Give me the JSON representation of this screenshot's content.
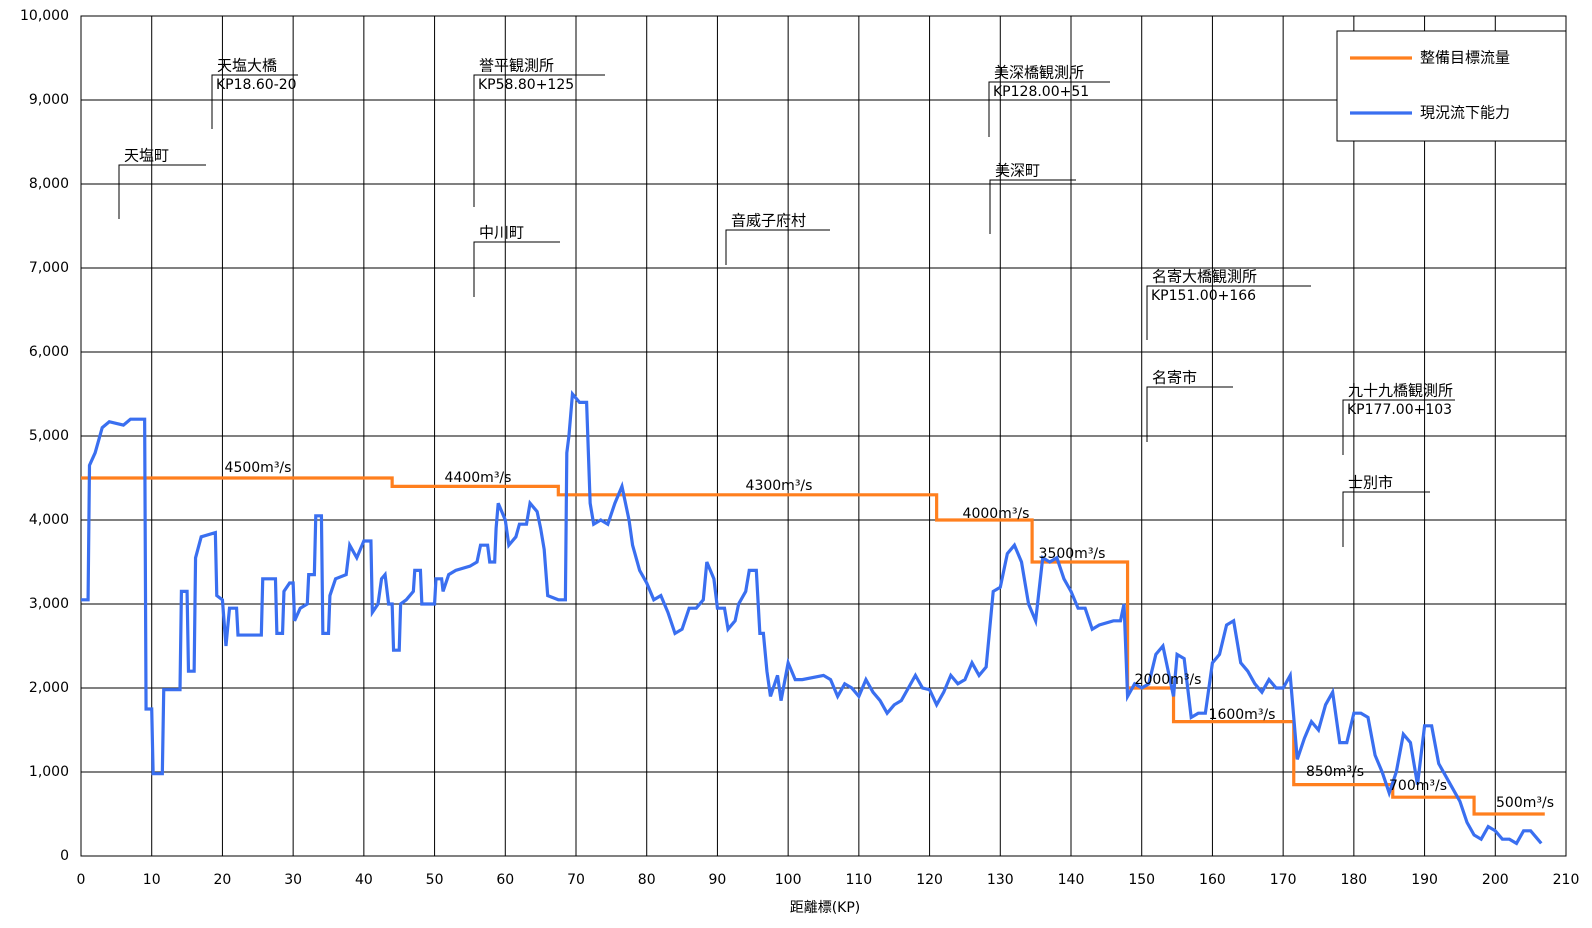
{
  "chart_data": {
    "type": "line",
    "x_label": "距離標(KP)",
    "xlim": [
      0,
      210
    ],
    "xticks": [
      0,
      10,
      20,
      30,
      40,
      50,
      60,
      70,
      80,
      90,
      100,
      110,
      120,
      130,
      140,
      150,
      160,
      170,
      180,
      190,
      200,
      210
    ],
    "ylim": [
      0,
      10000
    ],
    "yticks": [
      0,
      {
        "value": 1000,
        "label": "1,000"
      },
      {
        "value": 2000,
        "label": "2,000"
      },
      {
        "value": 3000,
        "label": "3,000"
      },
      {
        "value": 4000,
        "label": "4,000"
      },
      {
        "value": 5000,
        "label": "5,000"
      },
      {
        "value": 6000,
        "label": "6,000"
      },
      {
        "value": 7000,
        "label": "7,000"
      },
      {
        "value": 8000,
        "label": "8,000"
      },
      {
        "value": 9000,
        "label": "9,000"
      },
      {
        "value": 10000,
        "label": "10,000"
      }
    ],
    "grid": true,
    "legend": "upper right",
    "series": [
      {
        "name": "整備目標流量",
        "color": "#ff7f1e",
        "x": [
          0,
          44,
          44,
          67.5,
          67.5,
          121,
          121,
          134.5,
          134.5,
          148,
          148,
          154.5,
          154.5,
          171.5,
          171.5,
          185.5,
          185.5,
          197,
          197,
          207
        ],
        "values": [
          4500,
          4500,
          4400,
          4400,
          4300,
          4300,
          4000,
          4000,
          3500,
          3500,
          2000,
          2000,
          1600,
          1600,
          850,
          850,
          700,
          700,
          500,
          500
        ]
      },
      {
        "name": "現況流下能力",
        "color": "#3a6ff0",
        "x": [
          0,
          1,
          1.2,
          2,
          3,
          4,
          5,
          6,
          7,
          9,
          9.2,
          10,
          10.2,
          11.5,
          11.7,
          14,
          14.2,
          15,
          15.2,
          16,
          16.2,
          17,
          19,
          19.2,
          20,
          20.5,
          21,
          22,
          22.2,
          25.5,
          25.7,
          27.5,
          27.7,
          28.5,
          28.7,
          29.5,
          30,
          30.2,
          31,
          32,
          32.2,
          33,
          33.2,
          34,
          34.2,
          35,
          35.2,
          36,
          37.5,
          38,
          39,
          40,
          41,
          41.2,
          42,
          42.5,
          43,
          43.5,
          44,
          44.2,
          45,
          45.2,
          46,
          47,
          47.2,
          48,
          48.2,
          50,
          50.2,
          51,
          51.2,
          52,
          53,
          55,
          56,
          56.5,
          57.5,
          57.8,
          58.5,
          58.7,
          59,
          60,
          60.5,
          61.5,
          62,
          63,
          63.5,
          64.5,
          65,
          65.5,
          66,
          67.5,
          68.5,
          68.7,
          69,
          69.5,
          70.5,
          71.5,
          72,
          72.5,
          73.5,
          74.5,
          75.5,
          76.5,
          77.5,
          78,
          79,
          80,
          81,
          82,
          83,
          84,
          85,
          86,
          87,
          88,
          88.5,
          89.5,
          90,
          91,
          91.5,
          92.5,
          93,
          94,
          94.5,
          95.5,
          96,
          96.5,
          97,
          97.5,
          98.5,
          99,
          100,
          101,
          102,
          105,
          106,
          107,
          108,
          109,
          110,
          111,
          112,
          113,
          114,
          115,
          116,
          117,
          118,
          119,
          120,
          121,
          122,
          123,
          124,
          125,
          126,
          127,
          128,
          129,
          130,
          131,
          132,
          133,
          134,
          135,
          136,
          137,
          138,
          139,
          140,
          141,
          142,
          143,
          144,
          146,
          147,
          147.5,
          148,
          149,
          150,
          151,
          152,
          153,
          154,
          154.5,
          155,
          156,
          157,
          158,
          159,
          160,
          161,
          162,
          163,
          164,
          165,
          166,
          167,
          168,
          169,
          170,
          171,
          172,
          173,
          174,
          175,
          176,
          177,
          178,
          179,
          180,
          181,
          182,
          183,
          184,
          185,
          186,
          187,
          188,
          189,
          190,
          191,
          192,
          193,
          194,
          195,
          196,
          197,
          198,
          199,
          200,
          201,
          202,
          203,
          204,
          205,
          206,
          206.5
        ],
        "values": [
          3050,
          3050,
          4650,
          4800,
          5100,
          5170,
          5150,
          5130,
          5200,
          5200,
          1750,
          1750,
          980,
          980,
          1980,
          1980,
          3150,
          3150,
          2200,
          2200,
          3550,
          3800,
          3850,
          3100,
          3050,
          2500,
          2950,
          2950,
          2630,
          2630,
          3300,
          3300,
          2650,
          2650,
          3150,
          3250,
          3250,
          2800,
          2950,
          3000,
          3350,
          3350,
          4050,
          4050,
          2650,
          2650,
          3100,
          3300,
          3350,
          3700,
          3550,
          3750,
          3750,
          2900,
          3000,
          3300,
          3350,
          3000,
          3000,
          2450,
          2450,
          3000,
          3050,
          3150,
          3400,
          3400,
          3000,
          3000,
          3300,
          3300,
          3150,
          3350,
          3400,
          3450,
          3500,
          3700,
          3700,
          3500,
          3500,
          3900,
          4200,
          4000,
          3700,
          3800,
          3950,
          3950,
          4200,
          4100,
          3900,
          3650,
          3100,
          3050,
          3050,
          4800,
          5000,
          5500,
          5400,
          5400,
          4200,
          3950,
          4000,
          3950,
          4200,
          4400,
          4000,
          3700,
          3400,
          3250,
          3050,
          3100,
          2900,
          2650,
          2700,
          2950,
          2950,
          3050,
          3500,
          3300,
          2950,
          2950,
          2700,
          2800,
          3000,
          3150,
          3400,
          3400,
          2650,
          2650,
          2200,
          1900,
          2150,
          1850,
          2300,
          2100,
          2100,
          2150,
          2100,
          1900,
          2050,
          2000,
          1900,
          2100,
          1950,
          1850,
          1700,
          1800,
          1850,
          2000,
          2150,
          2000,
          1980,
          1800,
          1950,
          2150,
          2050,
          2100,
          2300,
          2150,
          2250,
          3150,
          3200,
          3600,
          3700,
          3500,
          3000,
          2800,
          3550,
          3500,
          3550,
          3300,
          3150,
          2950,
          2950,
          2700,
          2750,
          2800,
          2800,
          3000,
          1900,
          2050,
          2000,
          2050,
          2400,
          2500,
          2100,
          1900,
          2400,
          2350,
          1650,
          1700,
          1700,
          2300,
          2400,
          2750,
          2800,
          2300,
          2200,
          2050,
          1950,
          2100,
          2000,
          2000,
          2150,
          1150,
          1400,
          1600,
          1500,
          1800,
          1950,
          1350,
          1350,
          1700,
          1700,
          1650,
          1200,
          1000,
          750,
          1000,
          1450,
          1350,
          850,
          1550,
          1550,
          1100,
          950,
          800,
          650,
          400,
          250,
          200,
          350,
          300,
          200,
          200,
          150,
          300,
          300,
          200,
          150
        ]
      }
    ],
    "flow_labels": [
      "4500m³/s",
      "4400m³/s",
      "4300m³/s",
      "4000m³/s",
      "3500m³/s",
      "2000m³/s",
      "1600m³/s",
      "850m³/s",
      "700m³/s",
      "500m³/s"
    ],
    "annotations": [
      {
        "name": "天塩町"
      },
      {
        "name": "天塩大橋",
        "kp": "KP18.60-20"
      },
      {
        "name": "誉平観測所",
        "kp": "KP58.80+125"
      },
      {
        "name": "中川町"
      },
      {
        "name": "音威子府村"
      },
      {
        "name": "美深橋観測所",
        "kp": "KP128.00+51"
      },
      {
        "name": "美深町"
      },
      {
        "name": "名寄大橋観測所",
        "kp": "KP151.00+166"
      },
      {
        "name": "名寄市"
      },
      {
        "name": "九十九橋観測所",
        "kp": "KP177.00+103"
      },
      {
        "name": "士別市"
      }
    ]
  }
}
